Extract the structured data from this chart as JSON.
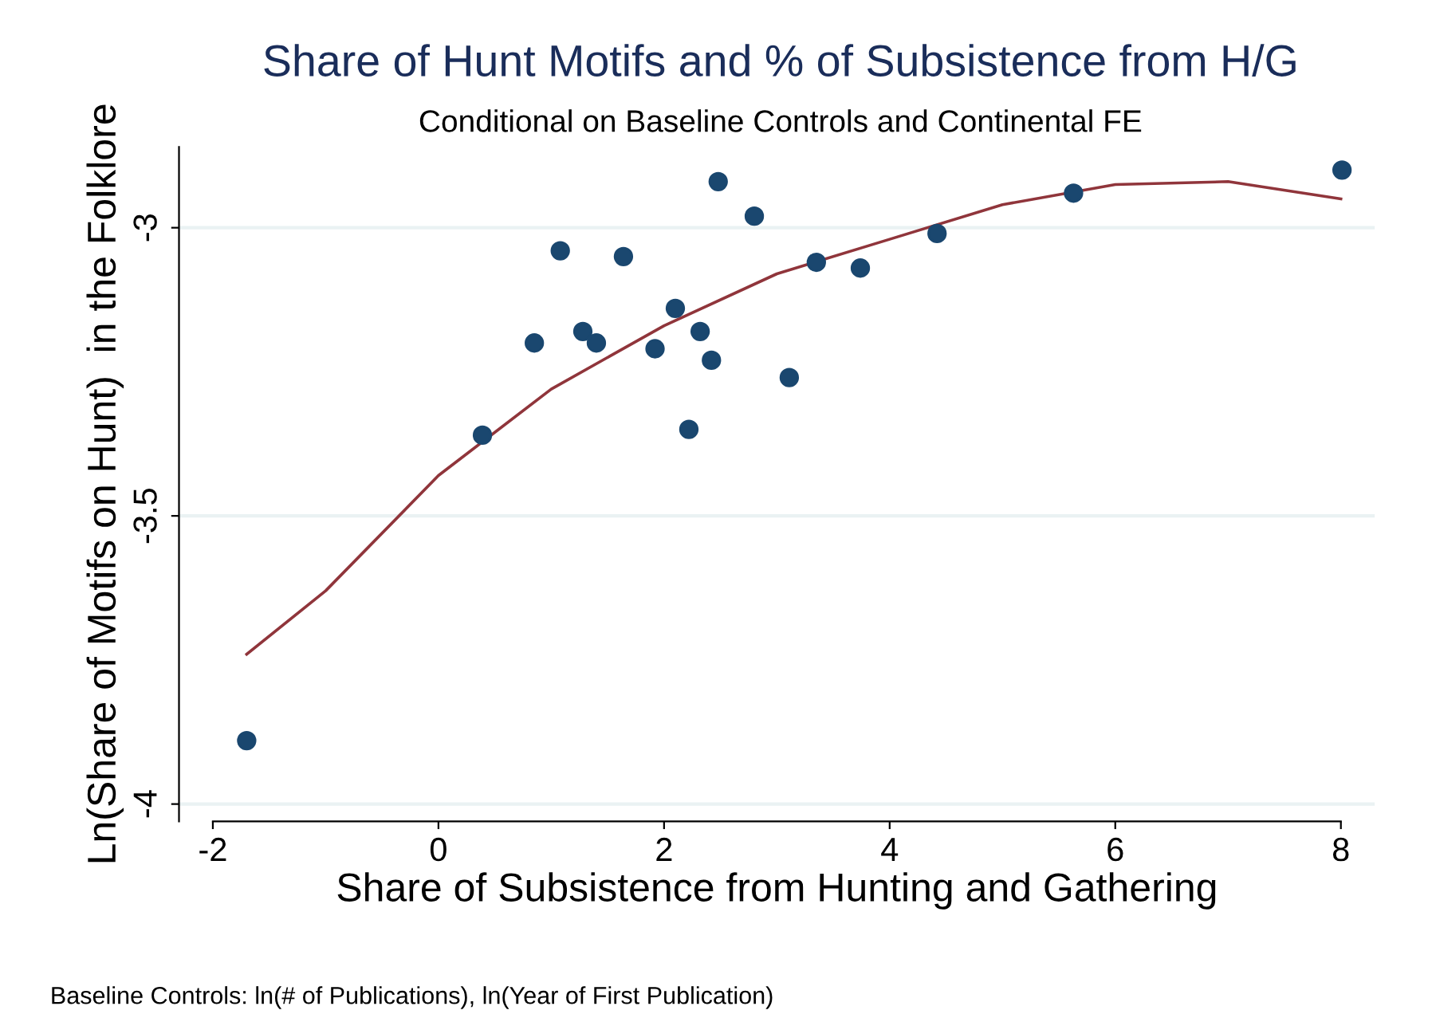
{
  "chart_data": {
    "type": "scatter",
    "title": "Share of Hunt Motifs and % of Subsistence from H/G",
    "subtitle": "Conditional on Baseline Controls and Continental FE",
    "xlabel": "Share of Subsistence from Hunting and Gathering",
    "ylabel": "Ln(Share of Motifs on Hunt)  in the Folklore",
    "series": [
      {
        "color": "#1a476f",
        "marker": "circle",
        "x": [
          -1.7,
          0.39,
          0.85,
          1.08,
          1.28,
          1.4,
          1.64,
          1.92,
          2.1,
          2.22,
          2.32,
          2.42,
          2.48,
          2.8,
          3.11,
          3.35,
          3.74,
          4.42,
          5.63,
          8.01
        ],
        "values": [
          -3.89,
          -3.36,
          -3.2,
          -3.04,
          -3.18,
          -3.2,
          -3.05,
          -3.21,
          -3.14,
          -3.35,
          -3.18,
          -3.23,
          -2.92,
          -2.98,
          -3.26,
          -3.06,
          -3.07,
          -3.01,
          -2.94,
          -2.9
        ]
      },
      {
        "type": "line",
        "color": "#90353b",
        "x": [
          -1.7,
          -1,
          0,
          1,
          2,
          3,
          4,
          5,
          6,
          7,
          8
        ],
        "values": [
          -3.74,
          -3.63,
          -3.43,
          -3.28,
          -3.17,
          -3.08,
          -3.02,
          -2.96,
          -2.925,
          -2.92,
          -2.95
        ]
      }
    ],
    "xlim": [
      -2.3,
      8.3
    ],
    "ylim": [
      -4.03,
      -2.86
    ],
    "xticks": [
      -2,
      0,
      2,
      4,
      6,
      8
    ],
    "yticks": [
      -4,
      -3.5,
      -3
    ],
    "grid": "y",
    "annotations": [
      "Baseline Controls: ln(# of Publications), ln(Year of First Publication)"
    ]
  }
}
